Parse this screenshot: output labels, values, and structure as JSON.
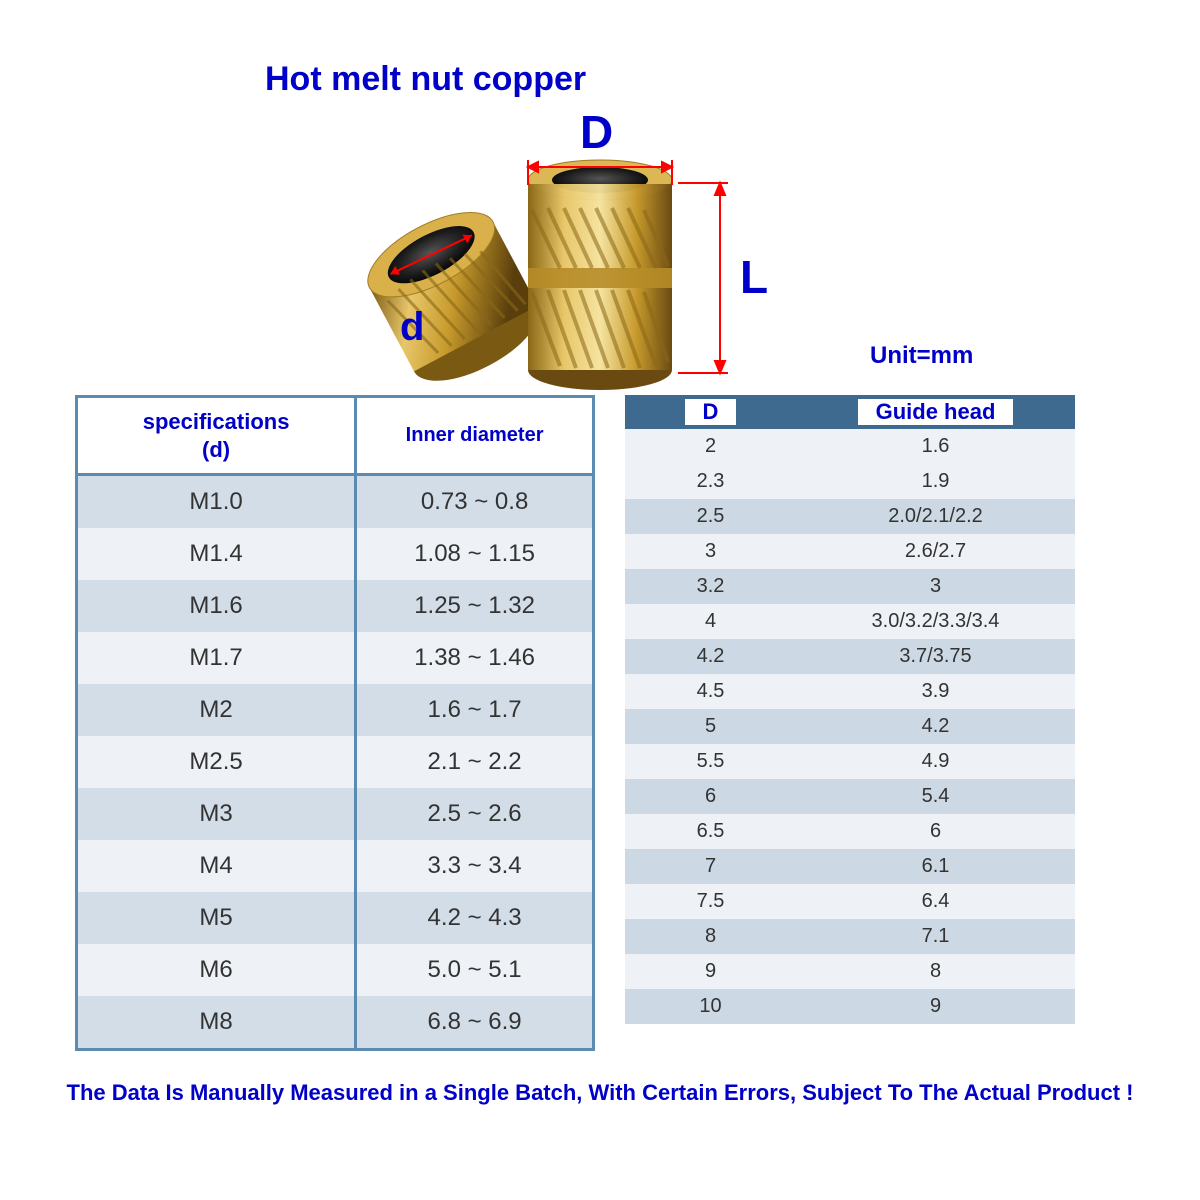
{
  "title": "Hot melt nut copper",
  "labels": {
    "D": "D",
    "L": "L",
    "d": "d"
  },
  "unit": "Unit=mm",
  "colors": {
    "accent_blue": "#0000c8",
    "table_border": "#5b8bb0",
    "row_odd_left": "#d2dde7",
    "row_even_left": "#eef2f6",
    "header_right_bg": "#3f6a8f",
    "row_odd_right": "#ccd9e4",
    "row_even_right": "#eef2f6",
    "brass_light": "#e8c76a",
    "brass_mid": "#c79a2c",
    "brass_dark": "#6b4a12",
    "dim_line": "#ff0000"
  },
  "left_table": {
    "headers": [
      "specifications\n(d)",
      "Inner diameter"
    ],
    "rows": [
      [
        "M1.0",
        "0.73 ~ 0.8"
      ],
      [
        "M1.4",
        "1.08 ~ 1.15"
      ],
      [
        "M1.6",
        "1.25 ~ 1.32"
      ],
      [
        "M1.7",
        "1.38 ~ 1.46"
      ],
      [
        "M2",
        "1.6 ~ 1.7"
      ],
      [
        "M2.5",
        "2.1 ~ 2.2"
      ],
      [
        "M3",
        "2.5 ~ 2.6"
      ],
      [
        "M4",
        "3.3 ~ 3.4"
      ],
      [
        "M5",
        "4.2 ~ 4.3"
      ],
      [
        "M6",
        "5.0 ~ 5.1"
      ],
      [
        "M8",
        "6.8 ~ 6.9"
      ]
    ]
  },
  "right_table": {
    "headers": [
      "D",
      "Guide head"
    ],
    "rows": [
      [
        "2",
        "1.6"
      ],
      [
        "2.3",
        "1.9"
      ],
      [
        "2.5",
        "2.0/2.1/2.2"
      ],
      [
        "3",
        "2.6/2.7"
      ],
      [
        "3.2",
        "3"
      ],
      [
        "4",
        "3.0/3.2/3.3/3.4"
      ],
      [
        "4.2",
        "3.7/3.75"
      ],
      [
        "4.5",
        "3.9"
      ],
      [
        "5",
        "4.2"
      ],
      [
        "5.5",
        "4.9"
      ],
      [
        "6",
        "5.4"
      ],
      [
        "6.5",
        "6"
      ],
      [
        "7",
        "6.1"
      ],
      [
        "7.5",
        "6.4"
      ],
      [
        "8",
        "7.1"
      ],
      [
        "9",
        "8"
      ],
      [
        "10",
        "9"
      ]
    ]
  },
  "footer": "The Data Is Manually Measured in a Single Batch, With Certain Errors, Subject To The Actual Product !"
}
